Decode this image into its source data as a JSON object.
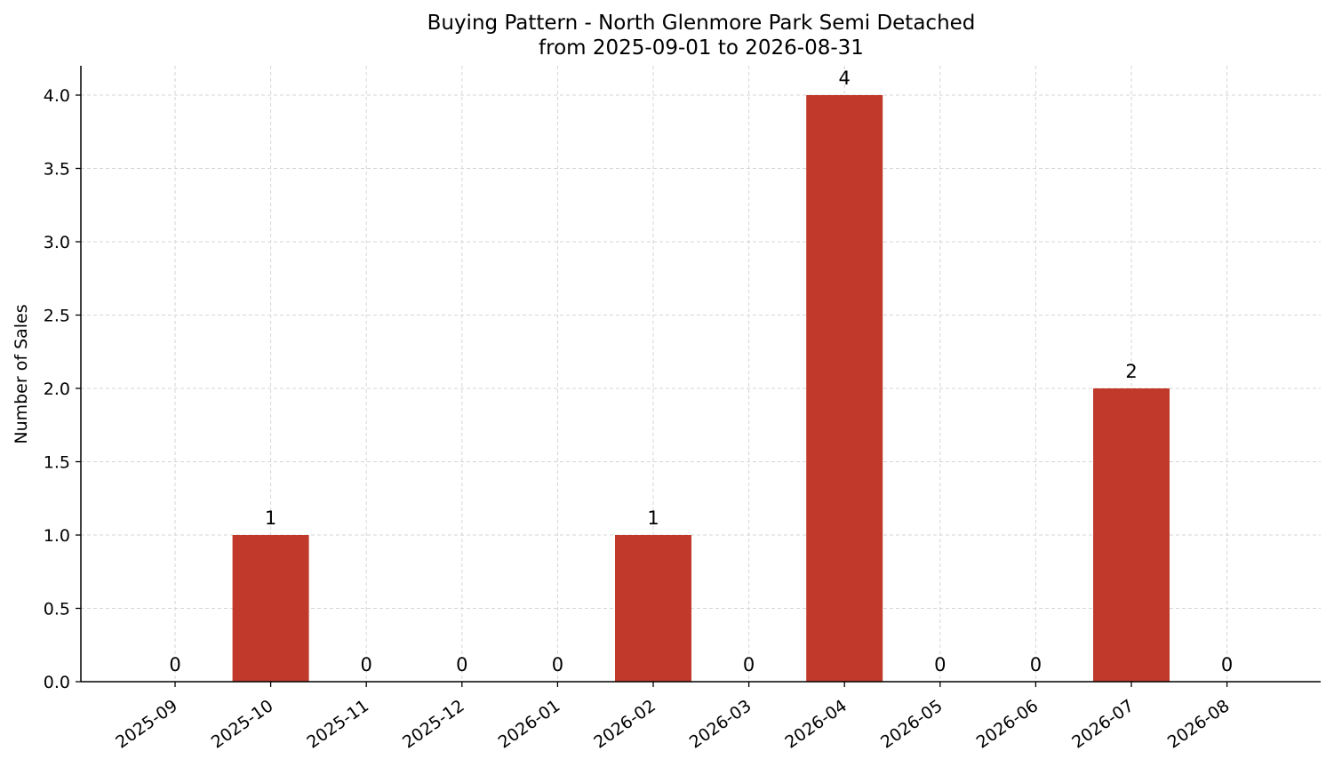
{
  "chart_data": {
    "type": "bar",
    "title": "Buying Pattern - North Glenmore Park Semi Detached",
    "subtitle": "from 2025-09-01 to 2026-08-31",
    "xlabel": "",
    "ylabel": "Number of Sales",
    "categories": [
      "2025-09",
      "2025-10",
      "2025-11",
      "2025-12",
      "2026-01",
      "2026-02",
      "2026-03",
      "2026-04",
      "2026-05",
      "2026-06",
      "2026-07",
      "2026-08"
    ],
    "values": [
      0,
      1,
      0,
      0,
      0,
      1,
      0,
      4,
      0,
      0,
      2,
      0
    ],
    "data_labels": [
      "0",
      "1",
      "0",
      "0",
      "0",
      "1",
      "0",
      "4",
      "0",
      "0",
      "2",
      "0"
    ],
    "ylim": [
      0,
      4.2
    ],
    "y_ticks": [
      0.0,
      0.5,
      1.0,
      1.5,
      2.0,
      2.5,
      3.0,
      3.5,
      4.0
    ],
    "y_tick_labels": [
      "0.0",
      "0.5",
      "1.0",
      "1.5",
      "2.0",
      "2.5",
      "3.0",
      "3.5",
      "4.0"
    ],
    "grid": true,
    "legend": "none",
    "bar_color": "#c0392b"
  }
}
